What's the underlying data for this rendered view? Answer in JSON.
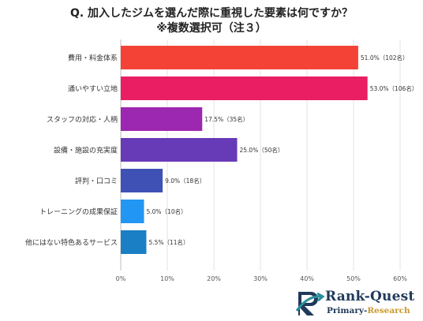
{
  "title": {
    "line1": "Q. 加入したジムを選んだ際に重視した要素は何ですか？",
    "line2": "※複数選択可（注３）"
  },
  "chart_data": {
    "type": "bar",
    "orientation": "horizontal",
    "categories": [
      "費用・料金体系",
      "通いやすい立地",
      "スタッフの対応・人柄",
      "設備・施設の充実度",
      "評判・口コミ",
      "トレーニングの成果保証",
      "他にはない特色あるサービス"
    ],
    "values": [
      51.0,
      53.0,
      17.5,
      25.0,
      9.0,
      5.0,
      5.5
    ],
    "data_labels": [
      "51.0%（102名）",
      "53.0%（106名）",
      "17.5%（35名）",
      "25.0%（50名）",
      "9.0%（18名）",
      "5.0%（10名）",
      "5.5%（11名）"
    ],
    "colors": [
      "#f44336",
      "#e91e63",
      "#9c27b0",
      "#673ab7",
      "#3f51b5",
      "#2196f3",
      "#1a7fc4"
    ],
    "xlim": [
      0,
      60
    ],
    "xticks": [
      "0%",
      "10%",
      "20%",
      "30%",
      "40%",
      "50%",
      "60%"
    ],
    "grid": true
  },
  "logo": {
    "name": "Rank-Quest",
    "sub_prefix": "Primary-",
    "sub_accent": "Research",
    "colors": {
      "navy": "#1f3a5a",
      "teal": "#2a8f9a",
      "gold": "#c99a2e"
    }
  }
}
